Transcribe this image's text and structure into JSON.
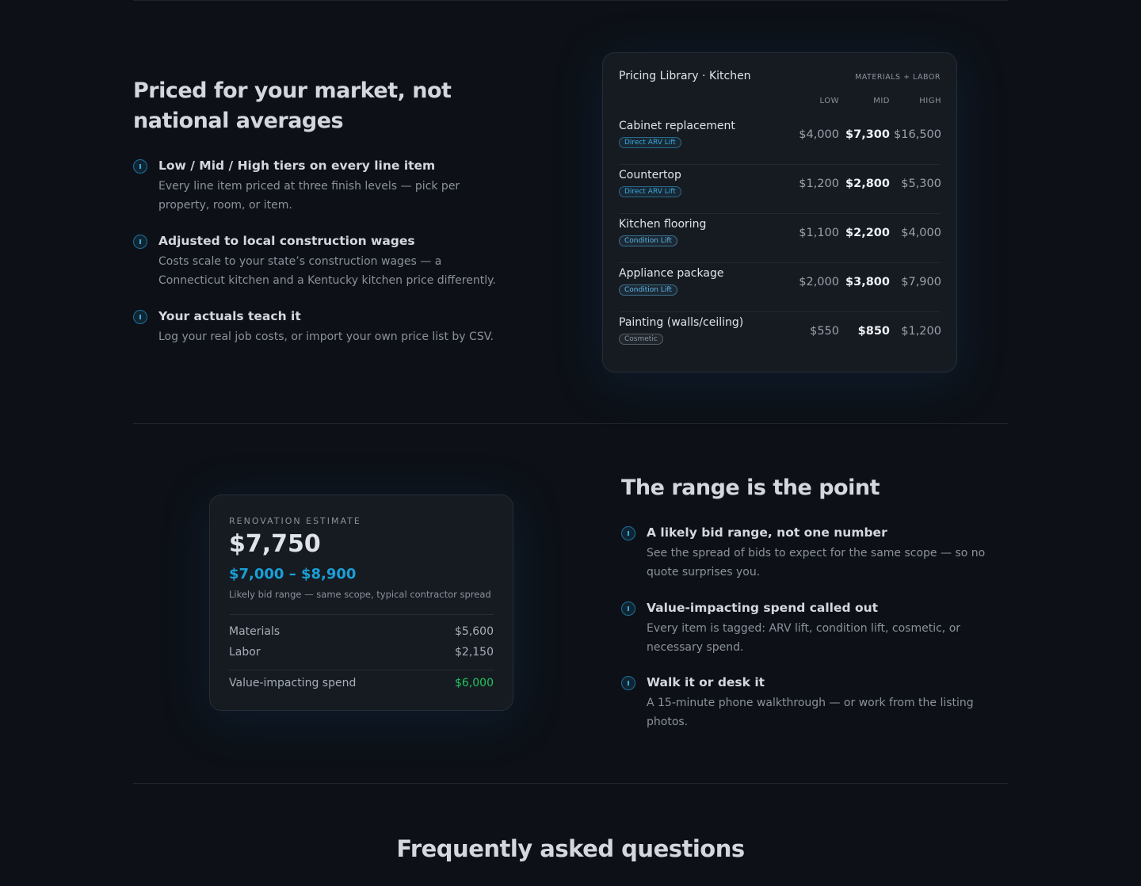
{
  "pricing_section": {
    "title": "Priced for your market, not national averages",
    "features": [
      {
        "title": "Low / Mid / High tiers on every line item",
        "text": "Every line item priced at three finish levels — pick per property, room, or item."
      },
      {
        "title": "Adjusted to local construction wages",
        "text": "Costs scale to your state’s construction wages — a Connecticut kitchen and a Kentucky kitchen price differently."
      },
      {
        "title": "Your actuals teach it",
        "text": "Log your real job costs, or import your own price list by CSV."
      }
    ]
  },
  "pricing_card": {
    "title": "Pricing Library · Kitchen",
    "subtitle": "MATERIALS + LABOR",
    "columns": [
      "LOW",
      "MID",
      "HIGH"
    ],
    "rows": [
      {
        "name": "Cabinet replacement",
        "tag": "Direct ARV Lift",
        "tag_color": "#38a8e0",
        "values": [
          "$4,000",
          "$7,300",
          "$16,500"
        ]
      },
      {
        "name": "Countertop",
        "tag": "Direct ARV Lift",
        "tag_color": "#38a8e0",
        "values": [
          "$1,200",
          "$2,800",
          "$5,300"
        ]
      },
      {
        "name": "Kitchen flooring",
        "tag": "Condition Lift",
        "tag_color": "#5cb8e8",
        "values": [
          "$1,100",
          "$2,200",
          "$4,000"
        ]
      },
      {
        "name": "Appliance package",
        "tag": "Condition Lift",
        "tag_color": "#5cb8e8",
        "values": [
          "$2,000",
          "$3,800",
          "$7,900"
        ]
      },
      {
        "name": "Painting (walls/ceiling)",
        "tag": "Cosmetic",
        "tag_color": "#8b929b",
        "values": [
          "$550",
          "$850",
          "$1,200"
        ]
      }
    ]
  },
  "estimate_card": {
    "label": "RENOVATION ESTIMATE",
    "total": "$7,750",
    "range": "$7,000 – $8,900",
    "caption": "Likely bid range — same scope, typical contractor spread",
    "lines": [
      {
        "name": "Materials",
        "value": "$5,600"
      },
      {
        "name": "Labor",
        "value": "$2,150"
      }
    ],
    "value_line": {
      "name": "Value-impacting spend",
      "value": "$6,000"
    }
  },
  "range_section": {
    "title": "The range is the point",
    "features": [
      {
        "title": "A likely bid range, not one number",
        "text": "See the spread of bids to expect for the same scope — so no quote surprises you."
      },
      {
        "title": "Value-impacting spend called out",
        "text": "Every item is tagged: ARV lift, condition lift, cosmetic, or necessary spend."
      },
      {
        "title": "Walk it or desk it",
        "text": "A 15-minute phone walkthrough — or work from the listing photos."
      }
    ]
  },
  "faq": {
    "title": "Frequently asked questions"
  }
}
